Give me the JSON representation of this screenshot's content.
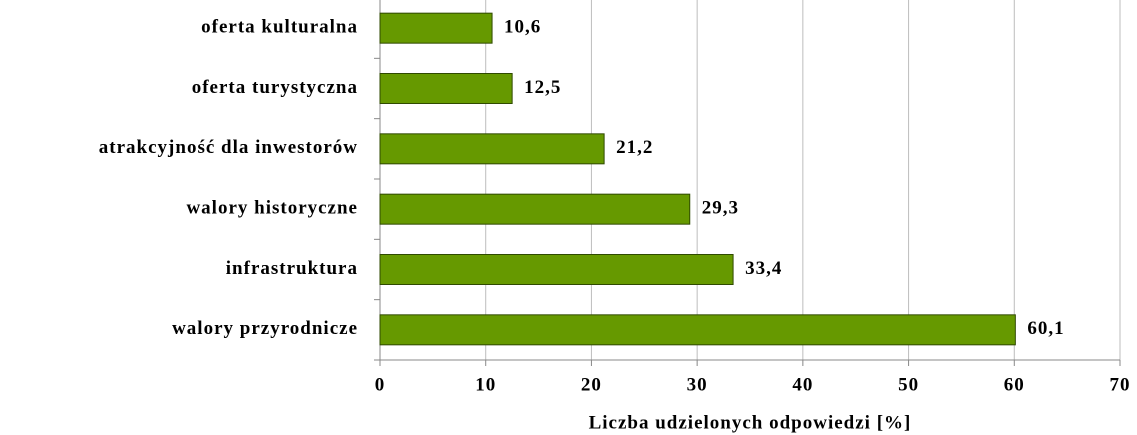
{
  "chart_data": {
    "type": "hbar",
    "x_label": "Liczba udzielonych odpowiedzi  [%]",
    "categories": [
      "oferta kulturalna",
      "oferta turystyczna",
      "atrakcyjność dla inwestorów",
      "walory historyczne",
      "infrastruktura",
      "walory przyrodnicze"
    ],
    "values": [
      10.6,
      12.5,
      21.2,
      29.3,
      33.4,
      60.1
    ],
    "value_labels": [
      "10,6",
      "12,5",
      "21,2",
      "29,3",
      "33,4",
      "60,1"
    ],
    "color": "#669900",
    "xlim": [
      0,
      70
    ],
    "xticks": [
      0,
      10,
      20,
      30,
      40,
      50,
      60,
      70
    ],
    "grid": true
  }
}
